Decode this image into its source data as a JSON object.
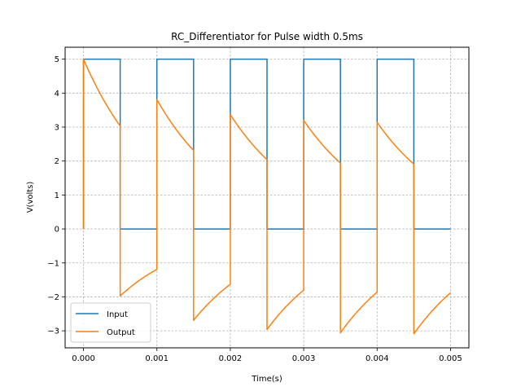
{
  "chart_data": {
    "type": "line",
    "title": "RC_Differentiator for Pulse width 0.5ms",
    "xlabel": "Time(s)",
    "ylabel": "V(volts)",
    "xlim": [
      -0.00025,
      0.00525
    ],
    "ylim": [
      -3.5,
      5.35
    ],
    "xticks": [
      0,
      0.001,
      0.002,
      0.003,
      0.004,
      0.005
    ],
    "xtick_labels": [
      "0.000",
      "0.001",
      "0.002",
      "0.003",
      "0.004",
      "0.005"
    ],
    "yticks": [
      -3,
      -2,
      -1,
      0,
      1,
      2,
      3,
      4,
      5
    ],
    "ytick_labels": [
      "−3",
      "−2",
      "−1",
      "0",
      "1",
      "2",
      "3",
      "4",
      "5"
    ],
    "grid": true,
    "legend_position": "lower-left",
    "series": [
      {
        "name": "Input",
        "color": "#1f77b4",
        "points": [
          [
            0,
            0
          ],
          [
            0,
            5
          ],
          [
            0.0005,
            5
          ],
          [
            0.0005,
            0
          ],
          [
            0.001,
            0
          ],
          [
            0.001,
            5
          ],
          [
            0.0015,
            5
          ],
          [
            0.0015,
            0
          ],
          [
            0.002,
            0
          ],
          [
            0.002,
            5
          ],
          [
            0.0025,
            5
          ],
          [
            0.0025,
            0
          ],
          [
            0.003,
            0
          ],
          [
            0.003,
            5
          ],
          [
            0.0035,
            5
          ],
          [
            0.0035,
            0
          ],
          [
            0.004,
            0
          ],
          [
            0.004,
            5
          ],
          [
            0.0045,
            5
          ],
          [
            0.0045,
            0
          ],
          [
            0.005,
            0
          ]
        ]
      },
      {
        "name": "Output",
        "color": "#ff7f0e",
        "pulse_width": 0.0005,
        "segments": [
          {
            "t0": 0.0,
            "v0": 0.0,
            "jump_to": 5.0,
            "v_end": 3.03
          },
          {
            "t0": 0.0005,
            "v0": 3.03,
            "jump_to": -1.97,
            "v_end": -1.19
          },
          {
            "t0": 0.001,
            "v0": -1.19,
            "jump_to": 3.81,
            "v_end": 2.31
          },
          {
            "t0": 0.0015,
            "v0": 2.31,
            "jump_to": -2.69,
            "v_end": -1.63
          },
          {
            "t0": 0.002,
            "v0": -1.63,
            "jump_to": 3.37,
            "v_end": 2.04
          },
          {
            "t0": 0.0025,
            "v0": 2.04,
            "jump_to": -2.96,
            "v_end": -1.8
          },
          {
            "t0": 0.003,
            "v0": -1.8,
            "jump_to": 3.2,
            "v_end": 1.94
          },
          {
            "t0": 0.0035,
            "v0": 1.94,
            "jump_to": -3.06,
            "v_end": -1.86
          },
          {
            "t0": 0.004,
            "v0": -1.86,
            "jump_to": 3.14,
            "v_end": 1.91
          },
          {
            "t0": 0.0045,
            "v0": 1.91,
            "jump_to": -3.09,
            "v_end": -1.88
          }
        ]
      }
    ]
  }
}
